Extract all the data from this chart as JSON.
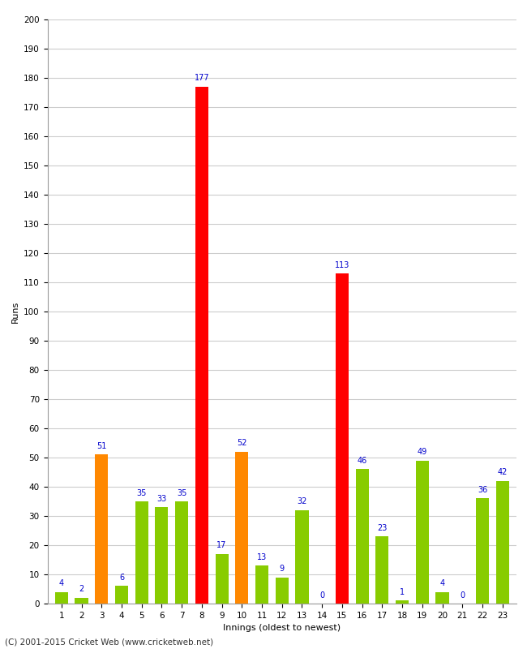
{
  "xlabel": "Innings (oldest to newest)",
  "ylabel": "Runs",
  "footer": "(C) 2001-2015 Cricket Web (www.cricketweb.net)",
  "ylim": [
    0,
    200
  ],
  "yticks": [
    0,
    10,
    20,
    30,
    40,
    50,
    60,
    70,
    80,
    90,
    100,
    110,
    120,
    130,
    140,
    150,
    160,
    170,
    180,
    190,
    200
  ],
  "innings": [
    1,
    2,
    3,
    4,
    5,
    6,
    7,
    8,
    9,
    10,
    11,
    12,
    13,
    14,
    15,
    16,
    17,
    18,
    19,
    20,
    21,
    22,
    23
  ],
  "values": [
    4,
    2,
    51,
    6,
    35,
    33,
    35,
    177,
    17,
    52,
    13,
    9,
    32,
    0,
    113,
    46,
    23,
    1,
    49,
    4,
    0,
    36,
    42
  ],
  "colors": [
    "#88cc00",
    "#88cc00",
    "#ff8800",
    "#88cc00",
    "#88cc00",
    "#88cc00",
    "#88cc00",
    "#ff0000",
    "#88cc00",
    "#ff8800",
    "#88cc00",
    "#88cc00",
    "#88cc00",
    "#88cc00",
    "#ff0000",
    "#88cc00",
    "#88cc00",
    "#88cc00",
    "#88cc00",
    "#88cc00",
    "#88cc00",
    "#88cc00",
    "#88cc00"
  ],
  "label_color": "#0000cc",
  "label_fontsize": 7,
  "bar_width": 0.65,
  "bg_color": "#ffffff",
  "grid_color": "#cccccc",
  "tick_fontsize": 7.5,
  "axis_label_fontsize": 8,
  "footer_fontsize": 7.5
}
